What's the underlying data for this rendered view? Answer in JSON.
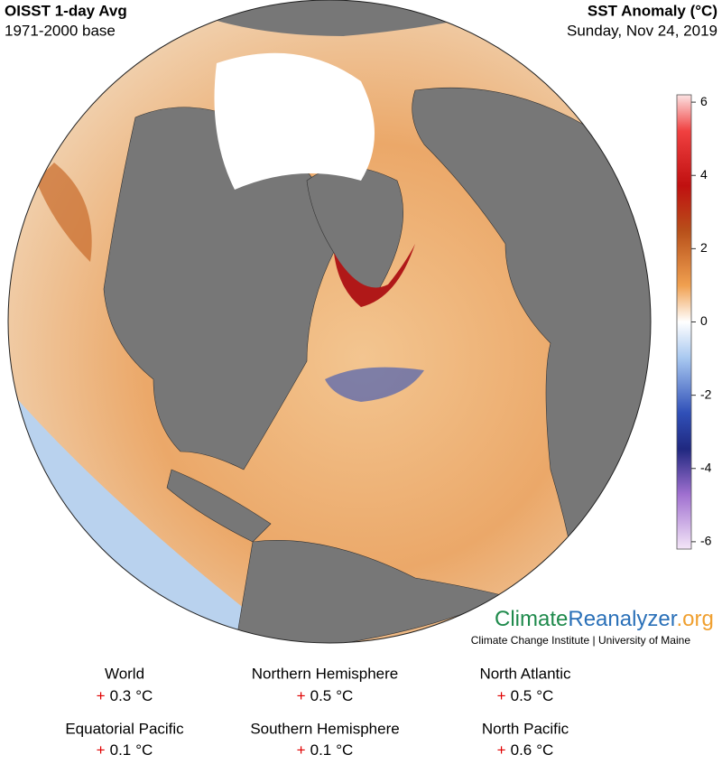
{
  "header": {
    "title": "OISST 1-day Avg",
    "subtitle": "1971-2000 base",
    "variable": "SST Anomaly (°C)",
    "date": "Sunday, Nov 24, 2019"
  },
  "colorbar": {
    "lim": [
      -6.2,
      6.2
    ],
    "ticks": [
      6,
      4,
      2,
      0,
      -2,
      -4,
      -6
    ]
  },
  "branding": {
    "climate": "Climate",
    "reanalyzer": "Reanalyzer",
    "org": ".org",
    "credit": "Climate Change Institute | University of Maine"
  },
  "unit": "°C",
  "stats": [
    {
      "region": "World",
      "sign": "+",
      "value": 0.3
    },
    {
      "region": "Northern Hemisphere",
      "sign": "+",
      "value": 0.5
    },
    {
      "region": "North Atlantic",
      "sign": "+",
      "value": 0.5
    },
    {
      "region": "Equatorial Pacific",
      "sign": "+",
      "value": 0.1
    },
    {
      "region": "Southern Hemisphere",
      "sign": "+",
      "value": 0.1
    },
    {
      "region": "North Pacific",
      "sign": "+",
      "value": 0.6
    }
  ]
}
